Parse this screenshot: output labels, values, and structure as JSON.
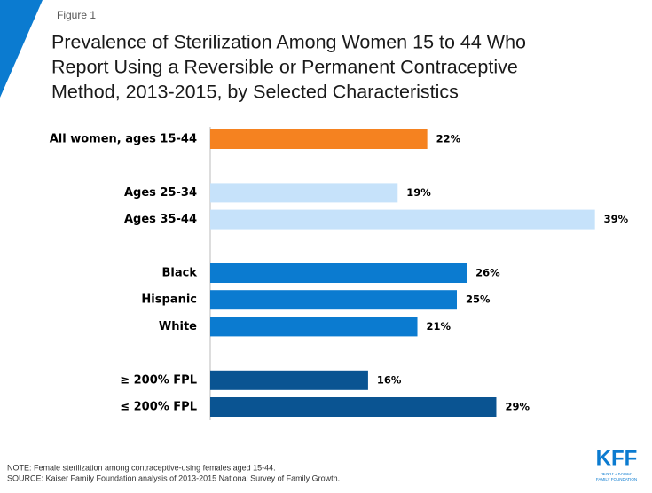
{
  "figure_label": "Figure 1",
  "chart_data": {
    "type": "bar",
    "orientation": "horizontal",
    "title": [
      "Prevalence of Sterilization Among Women 15 to 44 Who",
      "Report Using a Reversible or Permanent Contraceptive",
      "Method, 2013-2015, by Selected Characteristics"
    ],
    "categories": [
      "All women, ages 15-44",
      null,
      "Ages 25-34",
      "Ages 35-44",
      null,
      "Black",
      "Hispanic",
      "White",
      null,
      "≥ 200% FPL",
      "≤ 200% FPL"
    ],
    "values": [
      22,
      null,
      19,
      39,
      null,
      26,
      25,
      21,
      null,
      16,
      29
    ],
    "value_labels": [
      "22%",
      null,
      "19%",
      "39%",
      null,
      "26%",
      "25%",
      "21%",
      null,
      "16%",
      "29%"
    ],
    "colors": [
      "#f58220",
      null,
      "#c6e2fa",
      "#c6e2fa",
      null,
      "#0b7bd0",
      "#0b7bd0",
      "#0b7bd0",
      null,
      "#0a5492",
      "#0a5492"
    ]
  },
  "notes": [
    "NOTE: Female sterilization among contraceptive-using females aged 15-44.",
    "SOURCE: Kaiser Family Foundation analysis of 2013-2015 National Survey of Family Growth."
  ],
  "logo": {
    "text": "KFF",
    "subtext": [
      "HENRY J KAISER",
      "FAMILY FOUNDATION"
    ]
  }
}
